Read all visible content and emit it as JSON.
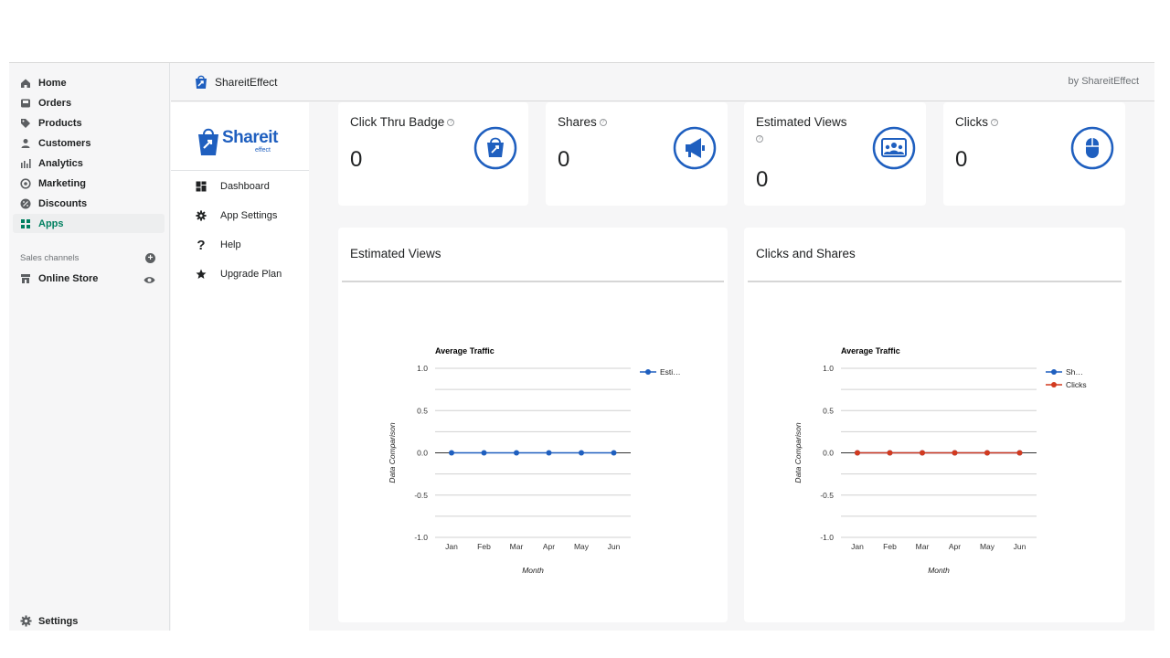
{
  "admin_nav": {
    "items": [
      {
        "label": "Home",
        "icon": "home-icon"
      },
      {
        "label": "Orders",
        "icon": "orders-icon"
      },
      {
        "label": "Products",
        "icon": "tag-icon"
      },
      {
        "label": "Customers",
        "icon": "person-icon"
      },
      {
        "label": "Analytics",
        "icon": "bar-chart-icon"
      },
      {
        "label": "Marketing",
        "icon": "target-icon"
      },
      {
        "label": "Discounts",
        "icon": "discount-icon"
      },
      {
        "label": "Apps",
        "icon": "apps-icon",
        "active": true
      }
    ],
    "sales_channels_label": "Sales channels",
    "online_store_label": "Online Store",
    "settings_label": "Settings"
  },
  "header": {
    "app_title": "ShareitEffect",
    "by_label": "by ShareitEffect"
  },
  "brand": {
    "logo_text": "Shareit",
    "logo_sub": "effect"
  },
  "app_nav": {
    "items": [
      {
        "label": "Dashboard",
        "icon": "dashboard-icon"
      },
      {
        "label": "App Settings",
        "icon": "gear-icon"
      },
      {
        "label": "Help",
        "icon": "question-icon"
      },
      {
        "label": "Upgrade Plan",
        "icon": "star-icon"
      }
    ]
  },
  "stats": [
    {
      "title": "Click Thru Badge",
      "value": "0",
      "icon": "shopping-bag-icon",
      "info_icon": "?"
    },
    {
      "title": "Shares",
      "value": "0",
      "icon": "megaphone-icon",
      "info_icon": "?"
    },
    {
      "title": "Estimated Views",
      "value": "0",
      "icon": "audience-icon",
      "info_icon": "?"
    },
    {
      "title": "Clicks",
      "value": "0",
      "icon": "mouse-icon",
      "info_icon": "?"
    }
  ],
  "colors": {
    "accent_blue": "#1f5fbf",
    "active_green": "#008060",
    "clicks_red": "#d23a1f"
  },
  "chart_data": [
    {
      "card_title": "Estimated Views",
      "type": "line",
      "title": "Average Traffic",
      "xlabel": "Month",
      "ylabel": "Data Comparison",
      "categories": [
        "Jan",
        "Feb",
        "Mar",
        "Apr",
        "May",
        "Jun"
      ],
      "ylim": [
        -1.0,
        1.0
      ],
      "yticks": [
        "1.0",
        "0.5",
        "0.0",
        "-0.5",
        "-1.0"
      ],
      "grid": true,
      "legend_position": "right",
      "series": [
        {
          "name": "Esti…",
          "color": "#1f5fbf",
          "values": [
            0,
            0,
            0,
            0,
            0,
            0
          ]
        }
      ]
    },
    {
      "card_title": "Clicks and Shares",
      "type": "line",
      "title": "Average Traffic",
      "xlabel": "Month",
      "ylabel": "Data Comparison",
      "categories": [
        "Jan",
        "Feb",
        "Mar",
        "Apr",
        "May",
        "Jun"
      ],
      "ylim": [
        -1.0,
        1.0
      ],
      "yticks": [
        "1.0",
        "0.5",
        "0.0",
        "-0.5",
        "-1.0"
      ],
      "grid": true,
      "legend_position": "right",
      "series": [
        {
          "name": "Sh…",
          "color": "#1f5fbf",
          "values": [
            0,
            0,
            0,
            0,
            0,
            0
          ]
        },
        {
          "name": "Clicks",
          "color": "#d23a1f",
          "values": [
            0,
            0,
            0,
            0,
            0,
            0
          ]
        }
      ]
    }
  ]
}
